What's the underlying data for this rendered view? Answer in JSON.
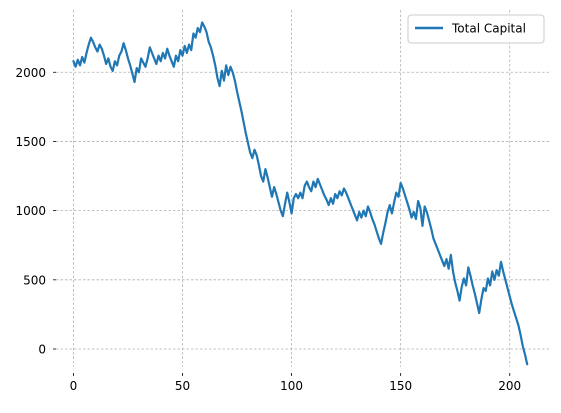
{
  "chart_data": {
    "type": "line",
    "title": "",
    "xlabel": "",
    "ylabel": "",
    "xlim": [
      -8,
      218
    ],
    "ylim": [
      -130,
      2450
    ],
    "xticks": [
      0,
      50,
      100,
      150,
      200
    ],
    "yticks": [
      0,
      500,
      1000,
      1500,
      2000
    ],
    "grid": true,
    "legend_position": "top-right",
    "series": [
      {
        "name": "Total Capital",
        "color": "#1f77b4",
        "points": [
          [
            0,
            2080
          ],
          [
            1,
            2040
          ],
          [
            2,
            2090
          ],
          [
            3,
            2050
          ],
          [
            4,
            2110
          ],
          [
            5,
            2070
          ],
          [
            6,
            2140
          ],
          [
            7,
            2200
          ],
          [
            8,
            2250
          ],
          [
            9,
            2220
          ],
          [
            10,
            2180
          ],
          [
            11,
            2150
          ],
          [
            12,
            2200
          ],
          [
            13,
            2170
          ],
          [
            14,
            2120
          ],
          [
            15,
            2060
          ],
          [
            16,
            2100
          ],
          [
            17,
            2040
          ],
          [
            18,
            2010
          ],
          [
            19,
            2080
          ],
          [
            20,
            2050
          ],
          [
            21,
            2120
          ],
          [
            22,
            2150
          ],
          [
            23,
            2210
          ],
          [
            24,
            2160
          ],
          [
            25,
            2100
          ],
          [
            26,
            2050
          ],
          [
            27,
            1990
          ],
          [
            28,
            1930
          ],
          [
            29,
            2030
          ],
          [
            30,
            2000
          ],
          [
            31,
            2100
          ],
          [
            32,
            2070
          ],
          [
            33,
            2040
          ],
          [
            34,
            2100
          ],
          [
            35,
            2180
          ],
          [
            36,
            2140
          ],
          [
            37,
            2100
          ],
          [
            38,
            2060
          ],
          [
            39,
            2120
          ],
          [
            40,
            2080
          ],
          [
            41,
            2140
          ],
          [
            42,
            2100
          ],
          [
            43,
            2170
          ],
          [
            44,
            2120
          ],
          [
            45,
            2080
          ],
          [
            46,
            2040
          ],
          [
            47,
            2120
          ],
          [
            48,
            2080
          ],
          [
            49,
            2160
          ],
          [
            50,
            2120
          ],
          [
            51,
            2190
          ],
          [
            52,
            2140
          ],
          [
            53,
            2200
          ],
          [
            54,
            2160
          ],
          [
            55,
            2280
          ],
          [
            56,
            2250
          ],
          [
            57,
            2320
          ],
          [
            58,
            2290
          ],
          [
            59,
            2360
          ],
          [
            60,
            2330
          ],
          [
            61,
            2290
          ],
          [
            62,
            2220
          ],
          [
            63,
            2180
          ],
          [
            64,
            2120
          ],
          [
            65,
            2050
          ],
          [
            66,
            1960
          ],
          [
            67,
            1900
          ],
          [
            68,
            2010
          ],
          [
            69,
            1940
          ],
          [
            70,
            2050
          ],
          [
            71,
            1980
          ],
          [
            72,
            2040
          ],
          [
            73,
            2000
          ],
          [
            74,
            1940
          ],
          [
            75,
            1860
          ],
          [
            76,
            1790
          ],
          [
            77,
            1720
          ],
          [
            78,
            1640
          ],
          [
            79,
            1560
          ],
          [
            80,
            1490
          ],
          [
            81,
            1420
          ],
          [
            82,
            1380
          ],
          [
            83,
            1440
          ],
          [
            84,
            1400
          ],
          [
            85,
            1330
          ],
          [
            86,
            1250
          ],
          [
            87,
            1210
          ],
          [
            88,
            1300
          ],
          [
            89,
            1240
          ],
          [
            90,
            1170
          ],
          [
            91,
            1100
          ],
          [
            92,
            1170
          ],
          [
            93,
            1120
          ],
          [
            94,
            1060
          ],
          [
            95,
            1000
          ],
          [
            96,
            960
          ],
          [
            97,
            1050
          ],
          [
            98,
            1130
          ],
          [
            99,
            1060
          ],
          [
            100,
            980
          ],
          [
            101,
            1090
          ],
          [
            102,
            1120
          ],
          [
            103,
            1090
          ],
          [
            104,
            1130
          ],
          [
            105,
            1090
          ],
          [
            106,
            1180
          ],
          [
            107,
            1210
          ],
          [
            108,
            1170
          ],
          [
            109,
            1140
          ],
          [
            110,
            1210
          ],
          [
            111,
            1170
          ],
          [
            112,
            1230
          ],
          [
            113,
            1190
          ],
          [
            114,
            1150
          ],
          [
            115,
            1110
          ],
          [
            116,
            1080
          ],
          [
            117,
            1040
          ],
          [
            118,
            1090
          ],
          [
            119,
            1050
          ],
          [
            120,
            1120
          ],
          [
            121,
            1090
          ],
          [
            122,
            1140
          ],
          [
            123,
            1110
          ],
          [
            124,
            1160
          ],
          [
            125,
            1130
          ],
          [
            126,
            1090
          ],
          [
            127,
            1050
          ],
          [
            128,
            1010
          ],
          [
            129,
            970
          ],
          [
            130,
            930
          ],
          [
            131,
            990
          ],
          [
            132,
            950
          ],
          [
            133,
            1000
          ],
          [
            134,
            960
          ],
          [
            135,
            1030
          ],
          [
            136,
            990
          ],
          [
            137,
            940
          ],
          [
            138,
            900
          ],
          [
            139,
            850
          ],
          [
            140,
            800
          ],
          [
            141,
            760
          ],
          [
            142,
            840
          ],
          [
            143,
            910
          ],
          [
            144,
            990
          ],
          [
            145,
            1040
          ],
          [
            146,
            980
          ],
          [
            147,
            1060
          ],
          [
            148,
            1130
          ],
          [
            149,
            1100
          ],
          [
            150,
            1200
          ],
          [
            151,
            1160
          ],
          [
            152,
            1110
          ],
          [
            153,
            1060
          ],
          [
            154,
            1010
          ],
          [
            155,
            950
          ],
          [
            156,
            990
          ],
          [
            157,
            940
          ],
          [
            158,
            1070
          ],
          [
            159,
            1020
          ],
          [
            160,
            890
          ],
          [
            161,
            1030
          ],
          [
            162,
            990
          ],
          [
            163,
            930
          ],
          [
            164,
            870
          ],
          [
            165,
            800
          ],
          [
            166,
            760
          ],
          [
            167,
            720
          ],
          [
            168,
            680
          ],
          [
            169,
            640
          ],
          [
            170,
            600
          ],
          [
            171,
            650
          ],
          [
            172,
            580
          ],
          [
            173,
            680
          ],
          [
            174,
            560
          ],
          [
            175,
            480
          ],
          [
            176,
            420
          ],
          [
            177,
            350
          ],
          [
            178,
            450
          ],
          [
            179,
            510
          ],
          [
            180,
            460
          ],
          [
            181,
            590
          ],
          [
            182,
            530
          ],
          [
            183,
            460
          ],
          [
            184,
            400
          ],
          [
            185,
            330
          ],
          [
            186,
            260
          ],
          [
            187,
            360
          ],
          [
            188,
            440
          ],
          [
            189,
            420
          ],
          [
            190,
            510
          ],
          [
            191,
            460
          ],
          [
            192,
            560
          ],
          [
            193,
            500
          ],
          [
            194,
            570
          ],
          [
            195,
            530
          ],
          [
            196,
            630
          ],
          [
            197,
            560
          ],
          [
            198,
            500
          ],
          [
            199,
            440
          ],
          [
            200,
            380
          ],
          [
            201,
            320
          ],
          [
            202,
            270
          ],
          [
            203,
            220
          ],
          [
            204,
            170
          ],
          [
            205,
            100
          ],
          [
            206,
            20
          ],
          [
            207,
            -40
          ],
          [
            208,
            -110
          ]
        ]
      }
    ]
  }
}
